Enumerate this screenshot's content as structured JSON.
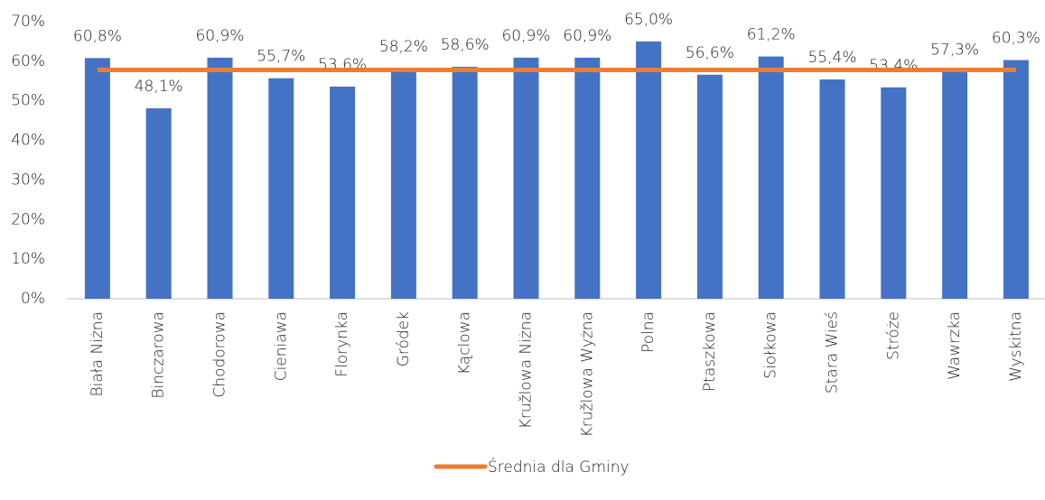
{
  "chart_data": {
    "type": "bar",
    "categories": [
      "Biała Niżna",
      "Binczarowa",
      "Chodorowa",
      "Cieniawa",
      "Florynka",
      "Gródek",
      "Kąclowa",
      "Kružlowa Niżna",
      "Kružlowa Wyżna",
      "Polna",
      "Ptaszkowa",
      "Siołkowa",
      "Stara Wieś",
      "Stróże",
      "Wawrzka",
      "Wyskitna"
    ],
    "series": [
      {
        "type": "bar",
        "color": "#4472c4",
        "values": [
          60.8,
          48.1,
          60.9,
          55.7,
          53.6,
          58.2,
          58.6,
          60.9,
          60.9,
          65.0,
          56.6,
          61.2,
          55.4,
          53.4,
          57.3,
          60.3
        ],
        "value_labels": [
          "60,8%",
          "48,1%",
          "60,9%",
          "55,7%",
          "53,6%",
          "58,2%",
          "58,6%",
          "60,9%",
          "60,9%",
          "65,0%",
          "56,6%",
          "61,2%",
          "55,4%",
          "53,4%",
          "57,3%",
          "60,3%"
        ]
      },
      {
        "type": "line",
        "name": "Średnia dla Gminy",
        "color": "#ed7d31",
        "values": [
          57.8,
          57.8,
          57.8,
          57.8,
          57.8,
          57.8,
          57.8,
          57.8,
          57.8,
          57.8,
          57.8,
          57.8,
          57.8,
          57.8,
          57.8,
          57.8
        ]
      }
    ],
    "ylim": [
      0,
      70
    ],
    "yticks": [
      {
        "value": 0,
        "label": "0%"
      },
      {
        "value": 10,
        "label": "10%"
      },
      {
        "value": 20,
        "label": "20%"
      },
      {
        "value": 30,
        "label": "30%"
      },
      {
        "value": 40,
        "label": "40%"
      },
      {
        "value": 50,
        "label": "50%"
      },
      {
        "value": 60,
        "label": "60%"
      },
      {
        "value": 70,
        "label": "70%"
      }
    ],
    "grid": false,
    "legend": "bottom"
  }
}
